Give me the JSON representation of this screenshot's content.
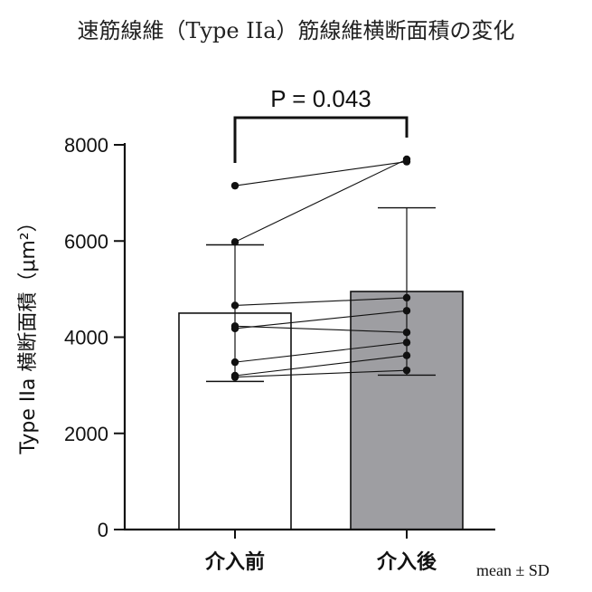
{
  "chart_data": {
    "type": "bar",
    "title": "速筋線維（Type IIa）筋線維横断面積の変化",
    "ylabel": "Type IIa 横断面積（μm²）",
    "xlabel": "",
    "categories": [
      "介入前",
      "介入後"
    ],
    "bars": [
      {
        "category": "介入前",
        "mean": 4500,
        "sd": 1420,
        "color": "#ffffff"
      },
      {
        "category": "介入後",
        "mean": 4950,
        "sd": 1740,
        "color": "#9e9ea2"
      }
    ],
    "paired_points": [
      [
        7150,
        7650
      ],
      [
        5980,
        7700
      ],
      [
        4660,
        4820
      ],
      [
        4230,
        4100
      ],
      [
        4180,
        4550
      ],
      [
        3480,
        3890
      ],
      [
        3200,
        3620
      ],
      [
        3170,
        3310
      ]
    ],
    "ylim": [
      0,
      8000
    ],
    "yticks": [
      0,
      2000,
      4000,
      6000,
      8000
    ],
    "ytick_labels": [
      "0",
      "2000",
      "4000",
      "6000",
      "8000"
    ],
    "annotation": "P = 0.043",
    "footnote": "mean ± SD",
    "grid": false
  }
}
